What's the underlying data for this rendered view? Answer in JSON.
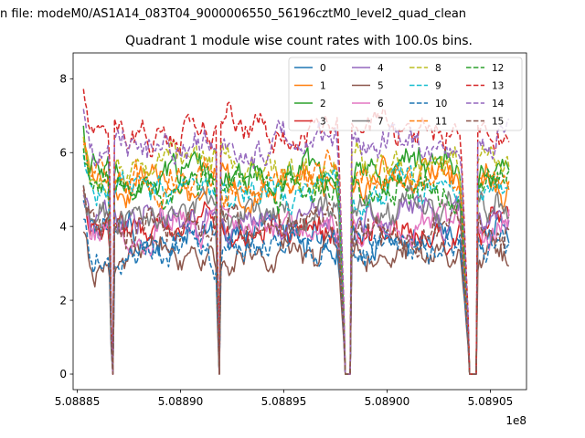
{
  "chart_data": {
    "type": "line",
    "suptitle": "n file: modeM0/AS1A14_083T04_9000006550_56196cztM0_level2_quad_clean",
    "title": "Quadrant 1 module wise count rates with 100.0s bins.",
    "xlabel": "",
    "ylabel": "",
    "x_offset_label": "1e8",
    "xlim": [
      5.088848,
      5.0890675
    ],
    "ylim": [
      -0.42,
      8.7
    ],
    "x_ticks": [
      5.08885,
      5.0889,
      5.08895,
      5.089,
      5.08905
    ],
    "x_tick_labels": [
      "5.08885",
      "5.08890",
      "5.08895",
      "5.08900",
      "5.08905"
    ],
    "y_ticks": [
      0,
      2,
      4,
      6,
      8
    ],
    "y_tick_labels": [
      "0",
      "2",
      "4",
      "6",
      "8"
    ],
    "x_range": [
      5.088853,
      5.089059
    ],
    "gaps": [
      {
        "start": 5.0888665,
        "end": 5.0888675
      },
      {
        "start": 5.0889183,
        "end": 5.0889193
      },
      {
        "start": 5.0889794,
        "end": 5.0889825
      },
      {
        "start": 5.0890395,
        "end": 5.0890435
      }
    ],
    "legend_position": "upper right",
    "series": [
      {
        "name": "0",
        "base": 3.7,
        "color": "#1f77b4",
        "style": "solid"
      },
      {
        "name": "1",
        "base": 5.2,
        "color": "#ff7f0e",
        "style": "solid"
      },
      {
        "name": "2",
        "base": 5.5,
        "color": "#2ca02c",
        "style": "solid"
      },
      {
        "name": "3",
        "base": 3.9,
        "color": "#d62728",
        "style": "solid"
      },
      {
        "name": "4",
        "base": 4.2,
        "color": "#9467bd",
        "style": "solid"
      },
      {
        "name": "5",
        "base": 3.1,
        "color": "#8c564b",
        "style": "solid"
      },
      {
        "name": "6",
        "base": 4.0,
        "color": "#e377c2",
        "style": "solid"
      },
      {
        "name": "7",
        "base": 4.4,
        "color": "#7f7f7f",
        "style": "solid"
      },
      {
        "name": "8",
        "base": 5.6,
        "color": "#bcbd22",
        "style": "dashed"
      },
      {
        "name": "9",
        "base": 5.0,
        "color": "#17becf",
        "style": "dashed"
      },
      {
        "name": "10",
        "base": 3.4,
        "color": "#1f77b4",
        "style": "dashed"
      },
      {
        "name": "11",
        "base": 5.3,
        "color": "#ff7f0e",
        "style": "dashed"
      },
      {
        "name": "12",
        "base": 5.1,
        "color": "#2ca02c",
        "style": "dashed"
      },
      {
        "name": "13",
        "base": 6.6,
        "color": "#d62728",
        "style": "dashed"
      },
      {
        "name": "14",
        "base": 6.2,
        "color": "#9467bd",
        "style": "dashed"
      },
      {
        "name": "15",
        "base": 4.0,
        "color": "#8c564b",
        "style": "dashed"
      }
    ]
  }
}
